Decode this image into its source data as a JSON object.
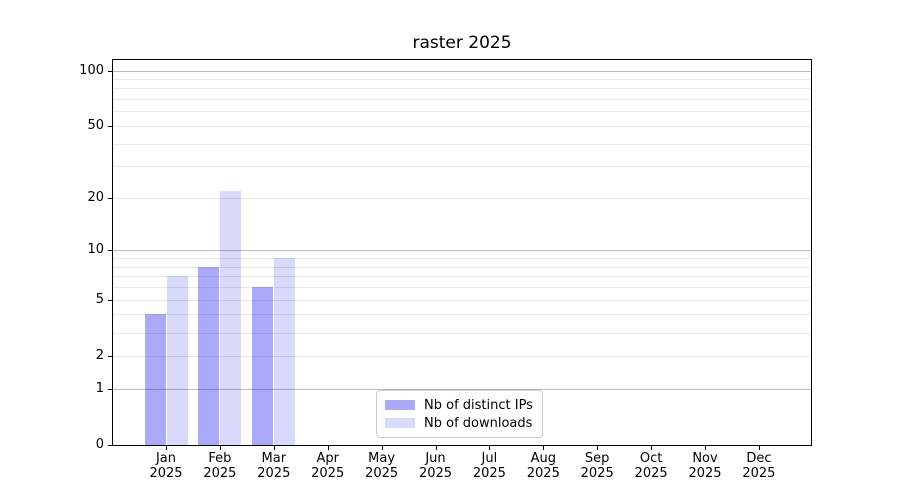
{
  "chart_data": {
    "type": "bar",
    "title": "raster 2025",
    "categories": [
      "Jan",
      "Feb",
      "Mar",
      "Apr",
      "May",
      "Jun",
      "Jul",
      "Aug",
      "Sep",
      "Oct",
      "Nov",
      "Dec"
    ],
    "x_year": "2025",
    "series": [
      {
        "name": "Nb of distinct IPs",
        "color": "rgba(20,20,235,0.36)",
        "values": [
          4,
          8,
          6,
          0,
          0,
          0,
          0,
          0,
          0,
          0,
          0,
          0
        ]
      },
      {
        "name": "Nb of downloads",
        "color": "rgba(20,20,235,0.16)",
        "values": [
          7,
          22,
          9,
          0,
          0,
          0,
          0,
          0,
          0,
          0,
          0,
          0
        ]
      }
    ],
    "y_scale": "log1p",
    "y_ticks": [
      0,
      1,
      2,
      5,
      10,
      20,
      50,
      100
    ],
    "ylim": [
      0,
      114
    ],
    "grid": {
      "major_values": [
        1,
        10,
        100
      ],
      "minor_values": [
        2,
        3,
        4,
        5,
        6,
        7,
        8,
        9,
        20,
        30,
        40,
        50,
        60,
        70,
        80,
        90
      ],
      "major_color": "#bbbbbb",
      "minor_color": "#e8e8e8"
    },
    "legend_position": "lower center inside",
    "colors": {
      "background": "#ffffff",
      "axis": "#000000",
      "text": "#000000",
      "legend_border": "#cccccc"
    }
  }
}
